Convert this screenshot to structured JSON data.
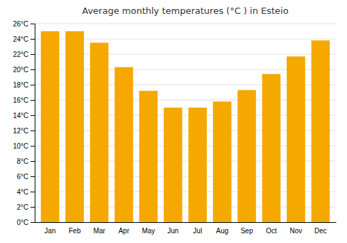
{
  "chart_data": {
    "type": "bar",
    "title": "Average monthly temperatures (°C ) in Esteio",
    "categories": [
      "Jan",
      "Feb",
      "Mar",
      "Apr",
      "May",
      "Jun",
      "Jul",
      "Aug",
      "Sep",
      "Oct",
      "Nov",
      "Dec"
    ],
    "values": [
      25.0,
      25.0,
      23.5,
      20.3,
      17.2,
      15.0,
      15.0,
      15.8,
      17.3,
      19.4,
      21.7,
      23.8
    ],
    "color": "#F5A800",
    "ylim": [
      0,
      26
    ],
    "yticks": [
      {
        "value": 0,
        "label": "0°C"
      },
      {
        "value": 2,
        "label": "2°C"
      },
      {
        "value": 4,
        "label": "4°C"
      },
      {
        "value": 6,
        "label": "6°C"
      },
      {
        "value": 8,
        "label": "8°C"
      },
      {
        "value": 10,
        "label": "10°C"
      },
      {
        "value": 12,
        "label": "12°C"
      },
      {
        "value": 14,
        "label": "14°C"
      },
      {
        "value": 16,
        "label": "16°C"
      },
      {
        "value": 18,
        "label": "18°C"
      },
      {
        "value": 20,
        "label": "20°C"
      },
      {
        "value": 22,
        "label": "22°C"
      },
      {
        "value": 24,
        "label": "24°C"
      },
      {
        "value": 26,
        "label": "26°C"
      }
    ],
    "grid": true
  }
}
